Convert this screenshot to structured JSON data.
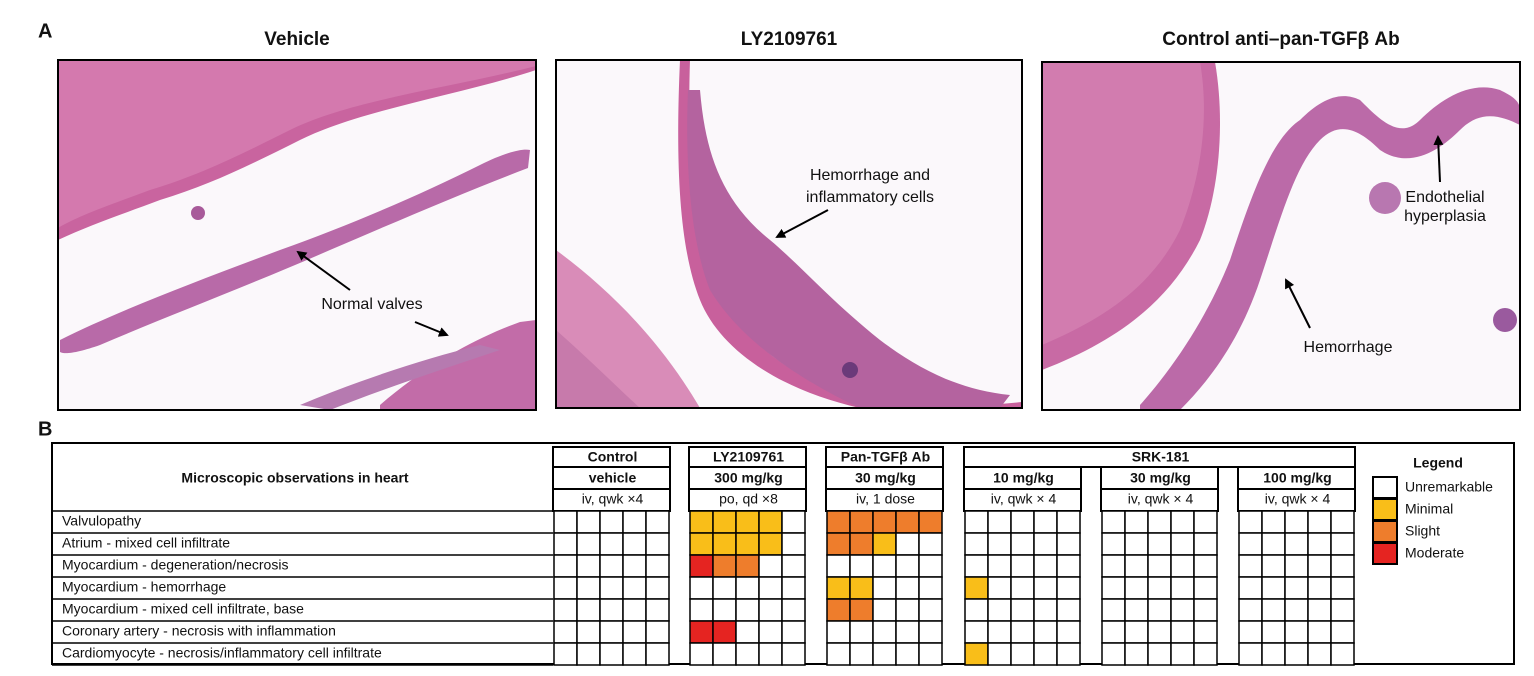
{
  "panel_a": {
    "label": "A",
    "images": [
      {
        "title": "Vehicle",
        "annotations": [
          [
            "Normal valves"
          ]
        ]
      },
      {
        "title": "LY2109761",
        "annotations": [
          [
            "Hemorrhage and",
            "inflammatory cells"
          ]
        ]
      },
      {
        "title": "Control anti–pan-TGFβ Ab",
        "annotations": [
          [
            "Endothelial",
            "hyperplasia"
          ],
          [
            "Hemorrhage"
          ]
        ]
      }
    ]
  },
  "panel_b": {
    "label": "B",
    "row_header": "Microscopic observations in heart",
    "rows": [
      "Valvulopathy",
      "Atrium - mixed cell infiltrate",
      "Myocardium - degeneration/necrosis",
      "Myocardium - hemorrhage",
      "Myocardium - mixed cell infiltrate, base",
      "Coronary artery - necrosis with inflammation",
      "Cardiomyocyte - necrosis/inflammatory cell infiltrate"
    ],
    "groups": [
      {
        "name": "Control",
        "doses": [
          {
            "dose": "vehicle",
            "regimen": "iv, qwk ×4",
            "grades": [
              [
                0,
                0,
                0,
                0,
                0
              ],
              [
                0,
                0,
                0,
                0,
                0
              ],
              [
                0,
                0,
                0,
                0,
                0
              ],
              [
                0,
                0,
                0,
                0,
                0
              ],
              [
                0,
                0,
                0,
                0,
                0
              ],
              [
                0,
                0,
                0,
                0,
                0
              ],
              [
                0,
                0,
                0,
                0,
                0
              ]
            ]
          }
        ]
      },
      {
        "name": "LY2109761",
        "doses": [
          {
            "dose": "300 mg/kg",
            "regimen": "po, qd ×8",
            "grades": [
              [
                1,
                1,
                1,
                1,
                0
              ],
              [
                1,
                1,
                1,
                1,
                0
              ],
              [
                3,
                2,
                2,
                0,
                0
              ],
              [
                0,
                0,
                0,
                0,
                0
              ],
              [
                0,
                0,
                0,
                0,
                0
              ],
              [
                3,
                3,
                0,
                0,
                0
              ],
              [
                0,
                0,
                0,
                0,
                0
              ]
            ]
          }
        ]
      },
      {
        "name": "Pan-TGFβ Ab",
        "doses": [
          {
            "dose": "30 mg/kg",
            "regimen": "iv, 1 dose",
            "grades": [
              [
                2,
                2,
                2,
                2,
                2
              ],
              [
                2,
                2,
                1,
                0,
                0
              ],
              [
                0,
                0,
                0,
                0,
                0
              ],
              [
                1,
                1,
                0,
                0,
                0
              ],
              [
                2,
                2,
                0,
                0,
                0
              ],
              [
                0,
                0,
                0,
                0,
                0
              ],
              [
                0,
                0,
                0,
                0,
                0
              ]
            ]
          }
        ]
      },
      {
        "name": "SRK-181",
        "doses": [
          {
            "dose": "10 mg/kg",
            "regimen": "iv, qwk × 4",
            "grades": [
              [
                0,
                0,
                0,
                0,
                0
              ],
              [
                0,
                0,
                0,
                0,
                0
              ],
              [
                0,
                0,
                0,
                0,
                0
              ],
              [
                1,
                0,
                0,
                0,
                0
              ],
              [
                0,
                0,
                0,
                0,
                0
              ],
              [
                0,
                0,
                0,
                0,
                0
              ],
              [
                1,
                0,
                0,
                0,
                0
              ]
            ]
          },
          {
            "dose": "30 mg/kg",
            "regimen": "iv, qwk × 4",
            "grades": [
              [
                0,
                0,
                0,
                0,
                0
              ],
              [
                0,
                0,
                0,
                0,
                0
              ],
              [
                0,
                0,
                0,
                0,
                0
              ],
              [
                0,
                0,
                0,
                0,
                0
              ],
              [
                0,
                0,
                0,
                0,
                0
              ],
              [
                0,
                0,
                0,
                0,
                0
              ],
              [
                0,
                0,
                0,
                0,
                0
              ]
            ]
          },
          {
            "dose": "100 mg/kg",
            "regimen": "iv, qwk × 4",
            "grades": [
              [
                0,
                0,
                0,
                0,
                0
              ],
              [
                0,
                0,
                0,
                0,
                0
              ],
              [
                0,
                0,
                0,
                0,
                0
              ],
              [
                0,
                0,
                0,
                0,
                0
              ],
              [
                0,
                0,
                0,
                0,
                0
              ],
              [
                0,
                0,
                0,
                0,
                0
              ],
              [
                0,
                0,
                0,
                0,
                0
              ]
            ]
          }
        ]
      }
    ],
    "legend": {
      "title": "Legend",
      "items": [
        {
          "label": "Unremarkable",
          "color": "#ffffff"
        },
        {
          "label": "Minimal",
          "color": "#f9be19"
        },
        {
          "label": "Slight",
          "color": "#ee7d2c"
        },
        {
          "label": "Moderate",
          "color": "#e52421"
        }
      ]
    }
  }
}
